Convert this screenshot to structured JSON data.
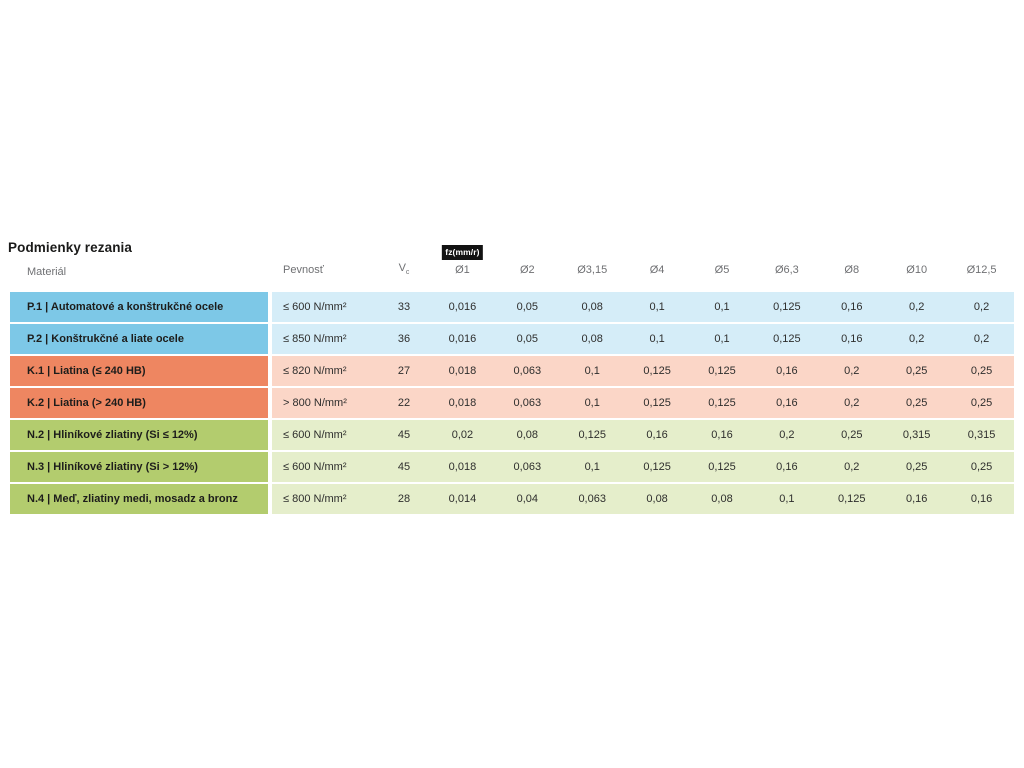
{
  "page": {
    "title": "Podmienky rezania"
  },
  "table": {
    "headers": {
      "material": "Materiál",
      "strength": "Pevnosť",
      "vc": "V",
      "vc_sub": "c",
      "fz_badge": "fz(mm/r)",
      "diameters": [
        "Ø1",
        "Ø2",
        "Ø3,15",
        "Ø4",
        "Ø5",
        "Ø6,3",
        "Ø8",
        "Ø10",
        "Ø12,5"
      ]
    },
    "colors": {
      "P": {
        "label": "#7dc8e7",
        "data": "#d5edf8"
      },
      "K": {
        "label": "#ee8661",
        "data": "#fbd6c7"
      },
      "N": {
        "label": "#b3cc6e",
        "data": "#e5eecb"
      },
      "badge_bg": "#121212",
      "badge_text": "#ffffff",
      "header_text": "#6f7073"
    },
    "rows": [
      {
        "group": "P",
        "material": "P.1 | Automatové a konštrukčné ocele",
        "strength": "≤ 600 N/mm²",
        "vc": "33",
        "values": [
          "0,016",
          "0,05",
          "0,08",
          "0,1",
          "0,1",
          "0,125",
          "0,16",
          "0,2",
          "0,2"
        ]
      },
      {
        "group": "P",
        "material": "P.2 | Konštrukčné a liate ocele",
        "strength": "≤ 850 N/mm²",
        "vc": "36",
        "values": [
          "0,016",
          "0,05",
          "0,08",
          "0,1",
          "0,1",
          "0,125",
          "0,16",
          "0,2",
          "0,2"
        ]
      },
      {
        "group": "K",
        "material": "K.1 | Liatina (≤ 240 HB)",
        "strength": "≤ 820 N/mm²",
        "vc": "27",
        "values": [
          "0,018",
          "0,063",
          "0,1",
          "0,125",
          "0,125",
          "0,16",
          "0,2",
          "0,25",
          "0,25"
        ]
      },
      {
        "group": "K",
        "material": "K.2 | Liatina (> 240 HB)",
        "strength": "> 800 N/mm²",
        "vc": "22",
        "values": [
          "0,018",
          "0,063",
          "0,1",
          "0,125",
          "0,125",
          "0,16",
          "0,2",
          "0,25",
          "0,25"
        ]
      },
      {
        "group": "N",
        "material": "N.2 | Hliníkové zliatiny (Si ≤ 12%)",
        "strength": "≤ 600 N/mm²",
        "vc": "45",
        "values": [
          "0,02",
          "0,08",
          "0,125",
          "0,16",
          "0,16",
          "0,2",
          "0,25",
          "0,315",
          "0,315"
        ]
      },
      {
        "group": "N",
        "material": "N.3 | Hliníkové zliatiny (Si > 12%)",
        "strength": "≤ 600 N/mm²",
        "vc": "45",
        "values": [
          "0,018",
          "0,063",
          "0,1",
          "0,125",
          "0,125",
          "0,16",
          "0,2",
          "0,25",
          "0,25"
        ]
      },
      {
        "group": "N",
        "material": "N.4 | Meď, zliatiny medi, mosadz a bronz",
        "strength": "≤ 800 N/mm²",
        "vc": "28",
        "values": [
          "0,014",
          "0,04",
          "0,063",
          "0,08",
          "0,08",
          "0,1",
          "0,125",
          "0,16",
          "0,16"
        ]
      }
    ]
  },
  "chart_data": {
    "type": "table",
    "title": "Podmienky rezania",
    "feed_unit_label": "fz(mm/r)",
    "columns": [
      "Materiál",
      "Pevnosť",
      "Vc",
      "Ø1",
      "Ø2",
      "Ø3,15",
      "Ø4",
      "Ø5",
      "Ø6,3",
      "Ø8",
      "Ø10",
      "Ø12,5"
    ],
    "rows": [
      [
        "P.1 | Automatové a konštrukčné ocele",
        "≤ 600 N/mm²",
        "33",
        "0,016",
        "0,05",
        "0,08",
        "0,1",
        "0,1",
        "0,125",
        "0,16",
        "0,2",
        "0,2"
      ],
      [
        "P.2 | Konštrukčné a liate ocele",
        "≤ 850 N/mm²",
        "36",
        "0,016",
        "0,05",
        "0,08",
        "0,1",
        "0,1",
        "0,125",
        "0,16",
        "0,2",
        "0,2"
      ],
      [
        "K.1 | Liatina (≤ 240 HB)",
        "≤ 820 N/mm²",
        "27",
        "0,018",
        "0,063",
        "0,1",
        "0,125",
        "0,125",
        "0,16",
        "0,2",
        "0,25",
        "0,25"
      ],
      [
        "K.2 | Liatina (> 240 HB)",
        "> 800 N/mm²",
        "22",
        "0,018",
        "0,063",
        "0,1",
        "0,125",
        "0,125",
        "0,16",
        "0,2",
        "0,25",
        "0,25"
      ],
      [
        "N.2 | Hliníkové zliatiny (Si ≤ 12%)",
        "≤ 600 N/mm²",
        "45",
        "0,02",
        "0,08",
        "0,125",
        "0,16",
        "0,16",
        "0,2",
        "0,25",
        "0,315",
        "0,315"
      ],
      [
        "N.3 | Hliníkové zliatiny (Si > 12%)",
        "≤ 600 N/mm²",
        "45",
        "0,018",
        "0,063",
        "0,1",
        "0,125",
        "0,125",
        "0,16",
        "0,2",
        "0,25",
        "0,25"
      ],
      [
        "N.4 | Meď, zliatiny medi, mosadz a bronz",
        "≤ 800 N/mm²",
        "28",
        "0,014",
        "0,04",
        "0,063",
        "0,08",
        "0,08",
        "0,1",
        "0,125",
        "0,16",
        "0,16"
      ]
    ]
  }
}
